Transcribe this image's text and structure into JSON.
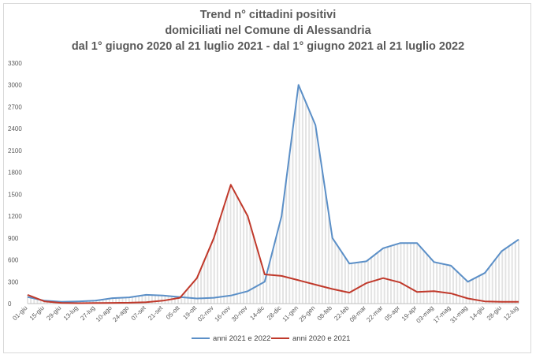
{
  "chart_data": {
    "type": "line",
    "title": "Trend n° cittadini positivi",
    "subtitle": "domiciliati nel Comune di Alessandria",
    "subtitle2": "dal 1° giugno 2020 al 21 luglio 2021 - dal 1° giugno 2021 al 21 luglio 2022",
    "xlabel": "",
    "ylabel": "",
    "ylim": [
      0,
      3300
    ],
    "yticks": [
      "0",
      "300",
      "600",
      "900",
      "1200",
      "1500",
      "1800",
      "2100",
      "2400",
      "2700",
      "3000",
      "3300"
    ],
    "x": [
      "01-giu",
      "15-giu",
      "29-giu",
      "13-lug",
      "27-lug",
      "10-ago",
      "24-ago",
      "07-set",
      "21-set",
      "05-ott",
      "19-ott",
      "02-nov",
      "16-nov",
      "30-nov",
      "14-dic",
      "28-dic",
      "11-gen",
      "25-gen",
      "08-feb",
      "22-feb",
      "08-mar",
      "22-mar",
      "05-apr",
      "19-apr",
      "03-mag",
      "17-mag",
      "31-mag",
      "14-giu",
      "28-giu",
      "12-lug"
    ],
    "grid": false,
    "legend_position": "bottom",
    "series": [
      {
        "name": "anni 2021 e 2022",
        "color": "#5b8fc7",
        "values": [
          90,
          40,
          25,
          30,
          40,
          75,
          85,
          120,
          110,
          90,
          70,
          80,
          110,
          170,
          300,
          1200,
          3000,
          2450,
          900,
          550,
          580,
          760,
          830,
          830,
          570,
          520,
          300,
          420,
          720,
          880
        ]
      },
      {
        "name": "anni 2020 e 2021",
        "color": "#c0392b",
        "values": [
          120,
          30,
          10,
          5,
          8,
          10,
          12,
          20,
          40,
          80,
          350,
          900,
          1630,
          1200,
          400,
          380,
          320,
          260,
          200,
          150,
          280,
          350,
          290,
          160,
          170,
          140,
          70,
          30,
          25,
          25
        ]
      }
    ]
  }
}
